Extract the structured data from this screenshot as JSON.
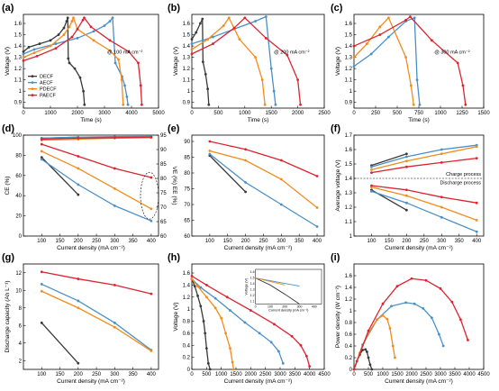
{
  "colors": {
    "DECF": "#3a3a3a",
    "AECF": "#4a90c8",
    "PDECF": "#f28c1c",
    "PAECF": "#dc2430"
  },
  "series_names": [
    "DECF",
    "AECF",
    "PDECF",
    "PAECF"
  ],
  "chart_data": [
    {
      "id": "a",
      "type": "line",
      "panel_label": "(a)",
      "xlabel": "Time (s)",
      "ylabel": "Voltage (V)",
      "xlim": [
        0,
        5000
      ],
      "ylim": [
        0.85,
        1.68
      ],
      "xticks": [
        0,
        1000,
        2000,
        3000,
        4000,
        5000
      ],
      "yticks": [
        0.9,
        1.0,
        1.1,
        1.2,
        1.3,
        1.4,
        1.5,
        1.6
      ],
      "annotation": "@ 100 mA cm⁻²",
      "legend": [
        "DECF",
        "AECF",
        "PDECF",
        "PAECF"
      ],
      "legend_position": "bottom-left",
      "series": [
        {
          "name": "DECF",
          "x": [
            0,
            200,
            600,
            1000,
            1300,
            1500,
            1600,
            1640,
            1660,
            1700,
            1900,
            2100,
            2220,
            2260
          ],
          "y": [
            1.35,
            1.39,
            1.42,
            1.45,
            1.5,
            1.56,
            1.62,
            1.65,
            1.29,
            1.25,
            1.2,
            1.12,
            1.0,
            0.88
          ]
        },
        {
          "name": "AECF",
          "x": [
            0,
            400,
            1200,
            2000,
            2600,
            3000,
            3200,
            3300,
            3400,
            3650,
            3750,
            3830,
            3870
          ],
          "y": [
            1.33,
            1.37,
            1.42,
            1.47,
            1.53,
            1.58,
            1.62,
            1.65,
            1.25,
            1.13,
            1.05,
            0.95,
            0.88
          ]
        },
        {
          "name": "PDECF",
          "x": [
            0,
            400,
            1000,
            1500,
            1700,
            1800,
            1850,
            2000,
            2600,
            3200,
            3520,
            3640,
            3690
          ],
          "y": [
            1.3,
            1.34,
            1.4,
            1.5,
            1.57,
            1.62,
            1.65,
            1.55,
            1.45,
            1.36,
            1.28,
            1.1,
            0.88
          ]
        },
        {
          "name": "PAECF",
          "x": [
            0,
            500,
            1200,
            1800,
            2000,
            2200,
            2250,
            2500,
            3200,
            3900,
            4250,
            4340,
            4380
          ],
          "y": [
            1.27,
            1.31,
            1.38,
            1.48,
            1.55,
            1.63,
            1.65,
            1.57,
            1.45,
            1.35,
            1.25,
            1.05,
            0.88
          ]
        }
      ]
    },
    {
      "id": "b",
      "type": "line",
      "panel_label": "(b)",
      "xlabel": "Time (s)",
      "ylabel": "Voltage (V)",
      "xlim": [
        0,
        2500
      ],
      "ylim": [
        0.85,
        1.68
      ],
      "xticks": [
        0,
        500,
        1000,
        1500,
        2000,
        2500
      ],
      "yticks": [
        0.9,
        1.0,
        1.1,
        1.2,
        1.3,
        1.4,
        1.5,
        1.6
      ],
      "annotation": "@ 200 mA cm⁻²",
      "series": [
        {
          "name": "DECF",
          "x": [
            0,
            80,
            160,
            200,
            210,
            260,
            300,
            320
          ],
          "y": [
            1.46,
            1.52,
            1.6,
            1.64,
            1.26,
            1.15,
            1.02,
            0.88
          ]
        },
        {
          "name": "AECF",
          "x": [
            0,
            400,
            800,
            1200,
            1400,
            1500,
            1550,
            1580
          ],
          "y": [
            1.42,
            1.48,
            1.55,
            1.62,
            1.66,
            1.2,
            1.0,
            0.88
          ]
        },
        {
          "name": "PDECF",
          "x": [
            0,
            300,
            600,
            700,
            900,
            1200,
            1330,
            1380
          ],
          "y": [
            1.37,
            1.46,
            1.58,
            1.65,
            1.46,
            1.3,
            1.1,
            0.88
          ]
        },
        {
          "name": "PAECF",
          "x": [
            0,
            400,
            800,
            1000,
            1400,
            1800,
            2000,
            2050
          ],
          "y": [
            1.33,
            1.42,
            1.56,
            1.65,
            1.47,
            1.32,
            1.1,
            0.88
          ]
        }
      ]
    },
    {
      "id": "c",
      "type": "line",
      "panel_label": "(c)",
      "xlabel": "Time (s)",
      "ylabel": "Voltage (V)",
      "xlim": [
        0,
        1500
      ],
      "ylim": [
        0.85,
        1.68
      ],
      "xticks": [
        0,
        250,
        500,
        750,
        1000,
        1250,
        1500
      ],
      "yticks": [
        0.9,
        1.0,
        1.1,
        1.2,
        1.3,
        1.4,
        1.5,
        1.6
      ],
      "annotation": "@ 300 mA cm⁻²",
      "series": [
        {
          "name": "AECF",
          "x": [
            0,
            200,
            400,
            600,
            700,
            730,
            760
          ],
          "y": [
            1.22,
            1.33,
            1.48,
            1.62,
            1.65,
            1.1,
            0.88
          ]
        },
        {
          "name": "PDECF",
          "x": [
            0,
            150,
            300,
            400,
            600,
            660,
            690
          ],
          "y": [
            1.3,
            1.42,
            1.57,
            1.65,
            1.3,
            1.05,
            0.88
          ]
        },
        {
          "name": "PAECF",
          "x": [
            0,
            300,
            600,
            650,
            900,
            1200,
            1260,
            1290
          ],
          "y": [
            1.4,
            1.5,
            1.63,
            1.66,
            1.45,
            1.25,
            1.05,
            0.88
          ]
        }
      ]
    },
    {
      "id": "d",
      "type": "line",
      "panel_label": "(d)",
      "xlabel": "Current density (mA cm⁻²)",
      "ylabel": "CE (%)",
      "ylabel_right": "VE (%) EE (%)",
      "xlim": [
        50,
        420
      ],
      "ylim": [
        0,
        100
      ],
      "ylim_right": [
        60,
        95
      ],
      "xticks": [
        100,
        150,
        200,
        250,
        300,
        350,
        400
      ],
      "yticks": [
        0,
        20,
        40,
        60,
        80,
        100
      ],
      "yticks_right": [
        60,
        65,
        70,
        75,
        80,
        85,
        90,
        95
      ],
      "series": [
        {
          "name": "DECF CE",
          "x": [
            100,
            200
          ],
          "y": [
            97,
            98
          ]
        },
        {
          "name": "AECF CE",
          "x": [
            100,
            200,
            300,
            400
          ],
          "y": [
            97,
            98,
            98.5,
            98.8
          ]
        },
        {
          "name": "PDECF CE",
          "x": [
            100,
            200,
            300,
            400
          ],
          "y": [
            95,
            96,
            97,
            97.5
          ]
        },
        {
          "name": "PAECF CE",
          "x": [
            100,
            200,
            300,
            400
          ],
          "y": [
            96,
            97,
            97.5,
            98
          ]
        },
        {
          "name": "DECF EE",
          "x": [
            100,
            200
          ],
          "y": [
            78,
            41
          ]
        },
        {
          "name": "AECF EE",
          "x": [
            100,
            200,
            300,
            400
          ],
          "y": [
            76,
            51,
            30,
            15
          ]
        },
        {
          "name": "PDECF EE",
          "x": [
            100,
            200,
            300,
            400
          ],
          "y": [
            84,
            67,
            47,
            27
          ]
        },
        {
          "name": "PAECF EE",
          "x": [
            100,
            200,
            300,
            400
          ],
          "y": [
            91,
            79,
            67,
            58
          ]
        }
      ]
    },
    {
      "id": "e",
      "type": "line",
      "panel_label": "(e)",
      "xlabel": "Current density (mA cm⁻²)",
      "ylabel": "",
      "xlim": [
        50,
        420
      ],
      "ylim": [
        60,
        92
      ],
      "xticks": [
        100,
        150,
        200,
        250,
        300,
        350,
        400
      ],
      "yticks": [
        60,
        65,
        70,
        75,
        80,
        85,
        90
      ],
      "series": [
        {
          "name": "DECF",
          "x": [
            100,
            200
          ],
          "y": [
            85.5,
            74
          ]
        },
        {
          "name": "AECF",
          "x": [
            100,
            200,
            300,
            400
          ],
          "y": [
            86,
            77,
            70,
            63
          ]
        },
        {
          "name": "PDECF",
          "x": [
            100,
            200,
            300,
            400
          ],
          "y": [
            87,
            84,
            78,
            69
          ]
        },
        {
          "name": "PAECF",
          "x": [
            100,
            200,
            300,
            400
          ],
          "y": [
            90,
            87.5,
            84,
            79
          ]
        }
      ]
    },
    {
      "id": "f",
      "type": "line",
      "panel_label": "(f)",
      "xlabel": "Current density (mA cm⁻²)",
      "ylabel": "Average voltage (V)",
      "xlim": [
        50,
        420
      ],
      "ylim": [
        1.0,
        1.7
      ],
      "xticks": [
        100,
        150,
        200,
        250,
        300,
        350,
        400
      ],
      "yticks": [
        1.0,
        1.1,
        1.2,
        1.3,
        1.4,
        1.5,
        1.6,
        1.7
      ],
      "annotations": [
        "Charge process",
        "Discharge process"
      ],
      "series": [
        {
          "name": "DECF charge",
          "x": [
            100,
            200
          ],
          "y": [
            1.49,
            1.57
          ]
        },
        {
          "name": "AECF charge",
          "x": [
            100,
            200,
            300,
            400
          ],
          "y": [
            1.48,
            1.55,
            1.6,
            1.63
          ]
        },
        {
          "name": "PDECF charge",
          "x": [
            100,
            200,
            300,
            400
          ],
          "y": [
            1.46,
            1.52,
            1.57,
            1.62
          ]
        },
        {
          "name": "PAECF charge",
          "x": [
            100,
            200,
            300,
            400
          ],
          "y": [
            1.44,
            1.48,
            1.51,
            1.54
          ]
        },
        {
          "name": "DECF discharge",
          "x": [
            100,
            200
          ],
          "y": [
            1.32,
            1.18
          ]
        },
        {
          "name": "AECF discharge",
          "x": [
            100,
            200,
            300,
            400
          ],
          "y": [
            1.31,
            1.23,
            1.13,
            1.03
          ]
        },
        {
          "name": "PDECF discharge",
          "x": [
            100,
            200,
            300,
            400
          ],
          "y": [
            1.34,
            1.28,
            1.2,
            1.11
          ]
        },
        {
          "name": "PAECF discharge",
          "x": [
            100,
            200,
            300,
            400
          ],
          "y": [
            1.35,
            1.32,
            1.27,
            1.23
          ]
        }
      ]
    },
    {
      "id": "g",
      "type": "line",
      "panel_label": "(g)",
      "xlabel": "Current density (mA cm⁻²)",
      "ylabel": "Discharge capacity (Ah L⁻¹)",
      "xlim": [
        50,
        420
      ],
      "ylim": [
        1,
        13
      ],
      "xticks": [
        100,
        150,
        200,
        250,
        300,
        350,
        400
      ],
      "yticks": [
        2,
        4,
        6,
        8,
        10,
        12
      ],
      "series": [
        {
          "name": "DECF",
          "x": [
            100,
            200
          ],
          "y": [
            6.3,
            1.7
          ]
        },
        {
          "name": "AECF",
          "x": [
            100,
            200,
            300,
            400
          ],
          "y": [
            10.7,
            8.8,
            6.3,
            3.2
          ]
        },
        {
          "name": "PDECF",
          "x": [
            100,
            200,
            300,
            400
          ],
          "y": [
            9.9,
            8.0,
            5.8,
            3.1
          ]
        },
        {
          "name": "PAECF",
          "x": [
            100,
            200,
            300,
            400
          ],
          "y": [
            12.1,
            11.3,
            10.6,
            9.6
          ]
        }
      ]
    },
    {
      "id": "h",
      "type": "line",
      "panel_label": "(h)",
      "xlabel": "Current density (mA cm⁻²)",
      "ylabel": "Voltage (V)",
      "xlim": [
        0,
        4500
      ],
      "ylim": [
        0,
        1.75
      ],
      "xticks": [
        0,
        500,
        1000,
        1500,
        2000,
        2500,
        3000,
        3500,
        4000,
        4500
      ],
      "yticks": [
        0.0,
        0.2,
        0.4,
        0.6,
        0.8,
        1.0,
        1.2,
        1.4,
        1.6
      ],
      "inset_xlabel": "Current density (mA cm⁻²)",
      "inset_ylabel": "Voltage (V)",
      "inset_xticks": [
        0,
        100,
        200,
        300,
        400
      ],
      "inset_yticks": [
        1.1,
        1.2,
        1.3,
        1.4,
        1.5,
        1.6
      ],
      "series": [
        {
          "name": "DECF",
          "x": [
            0,
            100,
            200,
            300,
            400,
            450,
            500,
            560,
            620
          ],
          "y": [
            1.5,
            1.38,
            1.22,
            1.05,
            0.8,
            0.6,
            0.35,
            0.1,
            0.0
          ]
        },
        {
          "name": "AECF",
          "x": [
            0,
            300,
            800,
            1300,
            1800,
            2300,
            2700,
            2950,
            3100
          ],
          "y": [
            1.5,
            1.36,
            1.18,
            0.98,
            0.78,
            0.6,
            0.45,
            0.3,
            0.1
          ]
        },
        {
          "name": "PDECF",
          "x": [
            0,
            200,
            500,
            800,
            1000,
            1150,
            1300,
            1380,
            1420
          ],
          "y": [
            1.5,
            1.38,
            1.2,
            1.02,
            0.85,
            0.6,
            0.35,
            0.12,
            0.0
          ]
        },
        {
          "name": "PAECF",
          "x": [
            0,
            500,
            1200,
            2000,
            2800,
            3400,
            3700,
            3900,
            4000
          ],
          "y": [
            1.55,
            1.4,
            1.2,
            0.98,
            0.75,
            0.55,
            0.4,
            0.22,
            0.05
          ]
        }
      ]
    },
    {
      "id": "i",
      "type": "line",
      "panel_label": "(i)",
      "xlabel": "Current density (mA cm⁻²)",
      "ylabel": "Power density (W cm⁻²)",
      "xlim": [
        0,
        4500
      ],
      "ylim": [
        0,
        1.8
      ],
      "xticks": [
        0,
        500,
        1000,
        1500,
        2000,
        2500,
        3000,
        3500,
        4000,
        4500
      ],
      "yticks": [
        0.0,
        0.2,
        0.4,
        0.6,
        0.8,
        1.0,
        1.2,
        1.4,
        1.6
      ],
      "series": [
        {
          "name": "DECF",
          "x": [
            0,
            100,
            200,
            300,
            400,
            450,
            500,
            560,
            620
          ],
          "y": [
            0.0,
            0.14,
            0.25,
            0.33,
            0.34,
            0.3,
            0.2,
            0.08,
            0.0
          ]
        },
        {
          "name": "AECF",
          "x": [
            0,
            300,
            800,
            1300,
            1800,
            2100,
            2400,
            2700,
            2950,
            3100
          ],
          "y": [
            0.0,
            0.42,
            0.85,
            1.08,
            1.14,
            1.12,
            1.04,
            0.88,
            0.6,
            0.4
          ]
        },
        {
          "name": "PDECF",
          "x": [
            0,
            200,
            500,
            800,
            1000,
            1150,
            1250,
            1350,
            1420
          ],
          "y": [
            0.0,
            0.28,
            0.62,
            0.85,
            0.92,
            0.86,
            0.7,
            0.4,
            0.2
          ]
        },
        {
          "name": "PAECF",
          "x": [
            0,
            500,
            1000,
            1500,
            2000,
            2500,
            3000,
            3400,
            3700,
            3950
          ],
          "y": [
            0.0,
            0.66,
            1.12,
            1.42,
            1.55,
            1.52,
            1.38,
            1.15,
            0.85,
            0.5
          ]
        }
      ]
    }
  ]
}
